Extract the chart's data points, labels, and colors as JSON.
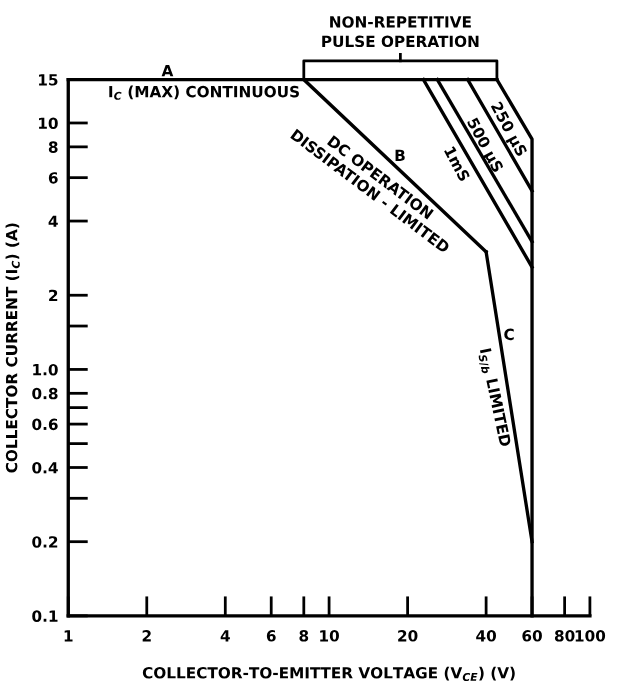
{
  "chart_data": {
    "type": "line",
    "xlabel": "COLLECTOR-TO-EMITTER VOLTAGE (V$_{CE}$) (V)",
    "ylabel": "COLLECTOR CURRENT (I$_{C}$) (A)",
    "log": "xy",
    "grid": false,
    "marker": "none",
    "line_style": "solid",
    "xlim": [
      1,
      100
    ],
    "ylim": [
      0.1,
      15
    ],
    "xticks": [
      1,
      2,
      4,
      6,
      8,
      10,
      20,
      40,
      60,
      80,
      100
    ],
    "yticks": [
      {
        "value": 0.1,
        "label": "0.1"
      },
      {
        "value": 0.2,
        "label": "0.2"
      },
      {
        "value": 0.3,
        "label": null
      },
      {
        "value": 0.4,
        "label": "0.4"
      },
      {
        "value": 0.5,
        "label": null
      },
      {
        "value": 0.6,
        "label": "0.6"
      },
      {
        "value": 0.7,
        "label": null
      },
      {
        "value": 0.8,
        "label": "0.8"
      },
      {
        "value": 1,
        "label": "1.0"
      },
      {
        "value": 1.5,
        "label": null
      },
      2,
      4,
      6,
      8,
      10,
      15
    ],
    "series": [
      {
        "color": "#000000",
        "x": [
          1,
          44
        ],
        "values": [
          15,
          15
        ]
      },
      {
        "color": "#000000",
        "x": [
          8,
          40
        ],
        "values": [
          15,
          3
        ]
      },
      {
        "color": "#000000",
        "x": [
          40,
          60
        ],
        "values": [
          3,
          0.2
        ]
      },
      {
        "color": "#000000",
        "x": [
          23,
          60
        ],
        "values": [
          15,
          2.6
        ]
      },
      {
        "color": "#000000",
        "x": [
          26,
          60
        ],
        "values": [
          15,
          3.3
        ]
      },
      {
        "color": "#000000",
        "x": [
          34,
          60
        ],
        "values": [
          15,
          5.3
        ]
      },
      {
        "color": "#000000",
        "x": [
          44,
          60,
          60
        ],
        "values": [
          15,
          8.6,
          0.1
        ]
      }
    ],
    "annotations": [
      "NON-REPETITIVE\nPULSE OPERATION",
      {
        "text": "A",
        "x": 2.4,
        "y": 16.1
      },
      "I$_{C}$ (MAX) CONTINUOUS",
      {
        "text": "B",
        "x": 18.7,
        "y": 7.3
      },
      "DC OPERATION\nDISSIPATION - LIMITED",
      {
        "text": "C",
        "x": 49,
        "y": 1.37
      },
      "I$_{S/b}$ LIMITED",
      "1mS",
      {
        "text": "500 µS",
        "x": 39.3,
        "y": 8.1
      },
      {
        "text": "250 µS",
        "x": 48.5,
        "y": 9.4
      }
    ]
  }
}
